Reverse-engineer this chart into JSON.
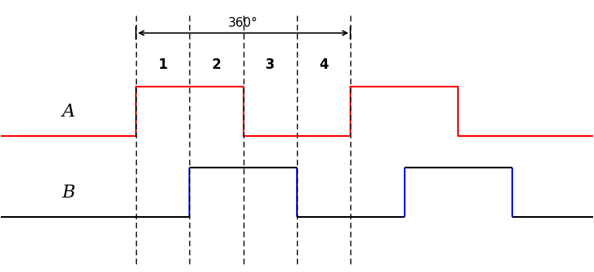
{
  "bg_color": "#ffffff",
  "signal_A_color": "#ff0000",
  "signal_B_color_horiz": "#000000",
  "signal_B_color_vert": "#0000ff",
  "dashed_line_color": "#000000",
  "label_color": "#000000",
  "annotation_color": "#000000",
  "segment_labels": [
    "1",
    "2",
    "3",
    "4"
  ],
  "arrow_label": "360°",
  "label_A": "A",
  "label_B": "B",
  "A_high": 7.5,
  "A_low": 5.5,
  "B_high": 4.2,
  "B_low": 2.2,
  "xlim": [
    0,
    22
  ],
  "ylim": [
    0,
    11
  ]
}
